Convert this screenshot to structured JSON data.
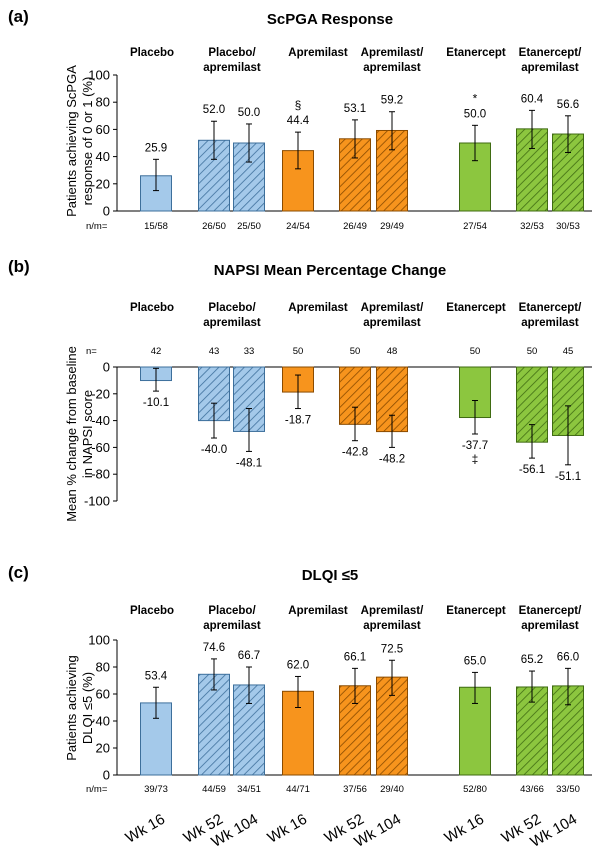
{
  "colors": {
    "placebo_fill": "#a4c9ea",
    "placebo_edge": "#3d6f9b",
    "apremilast_fill": "#f7941d",
    "apremilast_edge": "#8a4b00",
    "etanercept_fill": "#8cc63f",
    "etanercept_edge": "#3f6b12"
  },
  "groups": [
    {
      "label": "Placebo"
    },
    {
      "label": "Placebo/\napremilast"
    },
    {
      "label": "Apremilast"
    },
    {
      "label": "Apremilast/\napremilast"
    },
    {
      "label": "Etanercept"
    },
    {
      "label": "Etanercept/\napremilast"
    }
  ],
  "x_labels": [
    "Wk 16",
    "Wk 52",
    "Wk 104",
    "Wk 16",
    "Wk 52",
    "Wk 104",
    "Wk 16",
    "Wk 52",
    "Wk 104"
  ],
  "chart_data": [
    {
      "type": "bar",
      "letter": "(a)",
      "title": "ScPGA Response",
      "ylabel": [
        "Patients achieving ScPGA",
        "response of 0 or 1 (%)"
      ],
      "ylim": [
        0,
        100
      ],
      "yticks": [
        0,
        20,
        40,
        60,
        80,
        100
      ],
      "categories": [
        "Placebo Wk 16",
        "Placebo/apremilast Wk 52",
        "Placebo/apremilast Wk 104",
        "Apremilast Wk 16",
        "Apremilast/apremilast Wk 52",
        "Apremilast/apremilast Wk 104",
        "Etanercept Wk 16",
        "Etanercept/apremilast Wk 52",
        "Etanercept/apremilast Wk 104"
      ],
      "values": [
        25.9,
        52.0,
        50.0,
        44.4,
        53.1,
        59.2,
        50.0,
        60.4,
        56.6
      ],
      "value_labels": [
        "25.9",
        "52.0",
        "50.0",
        "44.4",
        "53.1",
        "59.2",
        "50.0",
        "60.4",
        "56.6"
      ],
      "error_low": [
        15,
        38,
        36,
        31,
        39,
        45,
        37,
        46,
        43
      ],
      "error_high": [
        38,
        66,
        64,
        58,
        67,
        73,
        63,
        74,
        70
      ],
      "symbols": [
        "",
        "",
        "",
        "§",
        "",
        "",
        "*",
        "",
        ""
      ],
      "counts_label": "n/m=",
      "counts": [
        "15/58",
        "26/50",
        "25/50",
        "24/54",
        "26/49",
        "29/49",
        "27/54",
        "32/53",
        "30/53"
      ],
      "grid": false
    },
    {
      "type": "bar",
      "letter": "(b)",
      "title": "NAPSI Mean Percentage Change",
      "ylabel": [
        "Mean % change from baseline",
        "in NAPSI score"
      ],
      "ylim": [
        -100,
        0
      ],
      "yticks": [
        0,
        -20,
        -40,
        -60,
        -80,
        -100
      ],
      "categories": [
        "Placebo Wk 16",
        "Placebo/apremilast Wk 52",
        "Placebo/apremilast Wk 104",
        "Apremilast Wk 16",
        "Apremilast/apremilast Wk 52",
        "Apremilast/apremilast Wk 104",
        "Etanercept Wk 16",
        "Etanercept/apremilast Wk 52",
        "Etanercept/apremilast Wk 104"
      ],
      "values": [
        -10.1,
        -40.0,
        -48.1,
        -18.7,
        -42.8,
        -48.2,
        -37.7,
        -56.1,
        -51.1
      ],
      "value_labels": [
        "-10.1",
        "-40.0",
        "-48.1",
        "-18.7",
        "-42.8",
        "-48.2",
        "-37.7",
        "-56.1",
        "-51.1"
      ],
      "error_low": [
        -18,
        -53,
        -63,
        -31,
        -55,
        -60,
        -50,
        -68,
        -73
      ],
      "error_high": [
        -1,
        -27,
        -31,
        -6,
        -30,
        -36,
        -25,
        -43,
        -29
      ],
      "symbols": [
        "",
        "",
        "",
        "",
        "",
        "",
        "‡",
        "",
        ""
      ],
      "counts_label": "n=",
      "counts": [
        "42",
        "43",
        "33",
        "50",
        "50",
        "48",
        "50",
        "50",
        "45"
      ],
      "grid": false
    },
    {
      "type": "bar",
      "letter": "(c)",
      "title": "DLQI ≤5",
      "ylabel": [
        "Patients achieving",
        "DLQI ≤5 (%)"
      ],
      "ylim": [
        0,
        100
      ],
      "yticks": [
        0,
        20,
        40,
        60,
        80,
        100
      ],
      "categories": [
        "Placebo Wk 16",
        "Placebo/apremilast Wk 52",
        "Placebo/apremilast Wk 104",
        "Apremilast Wk 16",
        "Apremilast/apremilast Wk 52",
        "Apremilast/apremilast Wk 104",
        "Etanercept Wk 16",
        "Etanercept/apremilast Wk 52",
        "Etanercept/apremilast Wk 104"
      ],
      "values": [
        53.4,
        74.6,
        66.7,
        62.0,
        66.1,
        72.5,
        65.0,
        65.2,
        66.0
      ],
      "value_labels": [
        "53.4",
        "74.6",
        "66.7",
        "62.0",
        "66.1",
        "72.5",
        "65.0",
        "65.2",
        "66.0"
      ],
      "error_low": [
        42,
        63,
        53,
        50,
        53,
        59,
        53,
        54,
        52
      ],
      "error_high": [
        65,
        86,
        80,
        73,
        79,
        85,
        76,
        77,
        79
      ],
      "symbols": [
        "",
        "",
        "",
        "",
        "",
        "",
        "",
        "",
        ""
      ],
      "counts_label": "n/m=",
      "counts": [
        "39/73",
        "44/59",
        "34/51",
        "44/71",
        "37/56",
        "29/40",
        "52/80",
        "43/66",
        "33/50"
      ],
      "grid": false
    }
  ]
}
